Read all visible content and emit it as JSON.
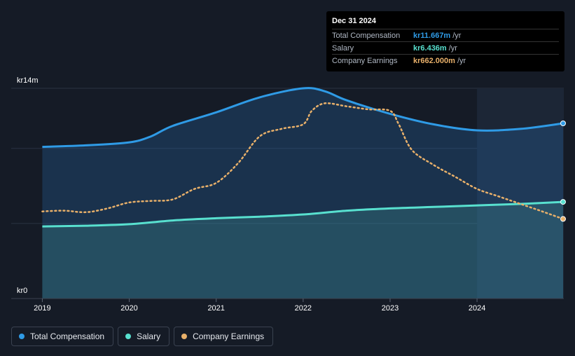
{
  "colors": {
    "total": "#2f9be6",
    "salary": "#58e0cf",
    "earnings": "#e8b06a"
  },
  "tooltip": {
    "date": "Dec 31 2024",
    "rows": [
      {
        "name": "Total Compensation",
        "value": "kr11.667m",
        "unit": "/yr",
        "color": "#2f9be6"
      },
      {
        "name": "Salary",
        "value": "kr6.436m",
        "unit": "/yr",
        "color": "#58e0cf"
      },
      {
        "name": "Company Earnings",
        "value": "kr662.000m",
        "unit": "/yr",
        "color": "#e8b06a"
      }
    ]
  },
  "legend": [
    {
      "label": "Total Compensation",
      "color": "#2f9be6"
    },
    {
      "label": "Salary",
      "color": "#58e0cf"
    },
    {
      "label": "Company Earnings",
      "color": "#e8b06a"
    }
  ],
  "chart_data": {
    "type": "area",
    "ylabel_top": "kr14m",
    "ylabel_bottom": "kr0",
    "ylim": [
      0,
      14
    ],
    "xlim": [
      2018.9,
      2024.99
    ],
    "x_ticks": [
      "2019",
      "2020",
      "2021",
      "2022",
      "2023",
      "2024"
    ],
    "highlight_from": 2024.0,
    "series": [
      {
        "name": "Total Compensation",
        "unit": "kr m/yr",
        "points": [
          [
            2019.0,
            10.1
          ],
          [
            2019.5,
            10.2
          ],
          [
            2020.0,
            10.4
          ],
          [
            2020.25,
            10.8
          ],
          [
            2020.5,
            11.5
          ],
          [
            2021.0,
            12.4
          ],
          [
            2021.5,
            13.4
          ],
          [
            2022.0,
            14.0
          ],
          [
            2022.25,
            13.8
          ],
          [
            2022.5,
            13.2
          ],
          [
            2023.0,
            12.3
          ],
          [
            2023.5,
            11.6
          ],
          [
            2024.0,
            11.2
          ],
          [
            2024.5,
            11.3
          ],
          [
            2024.99,
            11.667
          ]
        ]
      },
      {
        "name": "Salary",
        "unit": "kr m/yr",
        "points": [
          [
            2019.0,
            4.8
          ],
          [
            2019.5,
            4.85
          ],
          [
            2020.0,
            4.95
          ],
          [
            2020.5,
            5.2
          ],
          [
            2021.0,
            5.35
          ],
          [
            2021.5,
            5.45
          ],
          [
            2022.0,
            5.6
          ],
          [
            2022.5,
            5.85
          ],
          [
            2023.0,
            6.0
          ],
          [
            2023.5,
            6.1
          ],
          [
            2024.0,
            6.2
          ],
          [
            2024.5,
            6.3
          ],
          [
            2024.99,
            6.436
          ]
        ]
      },
      {
        "name": "Company Earnings",
        "unit": "relative scale",
        "points": [
          [
            2019.0,
            5.8
          ],
          [
            2019.25,
            5.85
          ],
          [
            2019.5,
            5.75
          ],
          [
            2019.75,
            6.0
          ],
          [
            2020.0,
            6.4
          ],
          [
            2020.25,
            6.5
          ],
          [
            2020.5,
            6.6
          ],
          [
            2020.75,
            7.3
          ],
          [
            2021.0,
            7.7
          ],
          [
            2021.25,
            9.0
          ],
          [
            2021.5,
            10.8
          ],
          [
            2021.75,
            11.3
          ],
          [
            2022.0,
            11.6
          ],
          [
            2022.1,
            12.5
          ],
          [
            2022.25,
            13.0
          ],
          [
            2022.5,
            12.8
          ],
          [
            2022.75,
            12.6
          ],
          [
            2023.0,
            12.5
          ],
          [
            2023.1,
            11.6
          ],
          [
            2023.25,
            9.9
          ],
          [
            2023.5,
            8.9
          ],
          [
            2023.75,
            8.1
          ],
          [
            2024.0,
            7.3
          ],
          [
            2024.25,
            6.8
          ],
          [
            2024.5,
            6.3
          ],
          [
            2024.75,
            5.8
          ],
          [
            2024.99,
            5.3
          ]
        ]
      }
    ]
  }
}
